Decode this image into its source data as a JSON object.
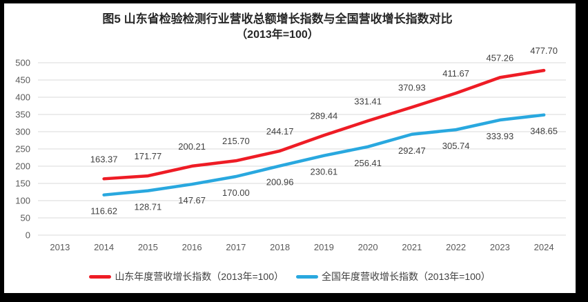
{
  "chart_data": {
    "type": "line",
    "title": "图5  山东省检验检测行业营收总额增长指数与全国营收增长指数对比",
    "subtitle": "（2013年=100）",
    "categories": [
      "2013",
      "2014",
      "2015",
      "2016",
      "2017",
      "2018",
      "2019",
      "2020",
      "2021",
      "2022",
      "2023",
      "2024"
    ],
    "series": [
      {
        "name": "山东年度营收增长指数（2013年=100）",
        "color": "#EE1C25",
        "label_position": "above",
        "values": [
          null,
          163.37,
          171.77,
          200.21,
          215.7,
          244.17,
          289.44,
          331.41,
          370.93,
          411.67,
          457.26,
          477.7
        ]
      },
      {
        "name": "全国年度营收增长指数（2013年=100）",
        "color": "#29A8DF",
        "label_position": "below",
        "values": [
          null,
          116.62,
          128.71,
          147.67,
          170.0,
          200.96,
          230.61,
          256.41,
          292.47,
          305.74,
          333.93,
          348.65
        ]
      }
    ],
    "xlabel": "",
    "ylabel": "",
    "ylim": [
      0,
      500
    ],
    "ytick_step": 50,
    "yticks": [
      0,
      50,
      100,
      150,
      200,
      250,
      300,
      350,
      400,
      450,
      500
    ],
    "grid": "horizontal",
    "legend_position": "bottom",
    "colors": {
      "grid": "#D9D9D9",
      "axis_text": "#595959",
      "data_label_text": "#404040",
      "title_text": "#262626",
      "plot_background": "#FFFFFF",
      "outer_frame": "#000000"
    }
  }
}
